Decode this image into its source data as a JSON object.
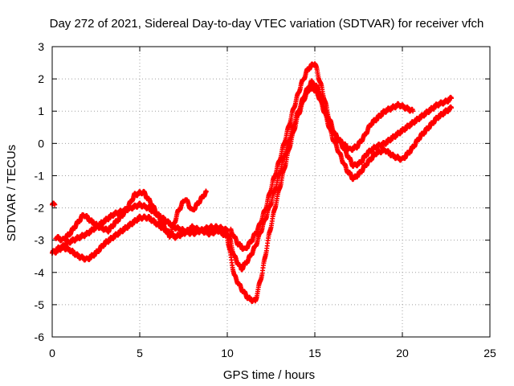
{
  "chart_data": {
    "type": "scatter",
    "title": "Day 272 of 2021, Sidereal Day-to-day VTEC variation (SDTVAR) for receiver vfch",
    "xlabel": "GPS time / hours",
    "ylabel": "SDTVAR / TECUs",
    "xlim": [
      0,
      25
    ],
    "ylim": [
      -6,
      3
    ],
    "xticks": [
      0,
      5,
      10,
      15,
      20,
      25
    ],
    "yticks": [
      -6,
      -5,
      -4,
      -3,
      -2,
      -1,
      0,
      1,
      2,
      3
    ],
    "grid": true,
    "legend": "none",
    "marker": "+",
    "color": "#ff0000",
    "series": [
      {
        "x": [
          0.0,
          0.4,
          0.8,
          1.2,
          1.6,
          2.0,
          2.5,
          3.0,
          3.5,
          4.0,
          4.5,
          5.0,
          5.5,
          6.0,
          6.5,
          7.0,
          7.5,
          8.0,
          8.5,
          9.0,
          9.5,
          10.0,
          10.4,
          10.8,
          11.2,
          11.6,
          12.0,
          12.4,
          12.8,
          13.2,
          13.6,
          14.0,
          14.4,
          14.8,
          15.2,
          15.6,
          16.0,
          16.4,
          16.8,
          17.2,
          17.6,
          18.0,
          18.5,
          19.0,
          19.5,
          20.0,
          20.5,
          21.0,
          21.5,
          22.0,
          22.5,
          22.8
        ],
        "y": [
          -3.4,
          -3.3,
          -3.1,
          -3.0,
          -2.9,
          -2.8,
          -2.6,
          -2.4,
          -2.2,
          -2.1,
          -2.0,
          -1.9,
          -2.0,
          -2.2,
          -2.4,
          -2.6,
          -2.7,
          -2.8,
          -2.7,
          -2.6,
          -2.6,
          -2.7,
          -3.5,
          -3.9,
          -3.6,
          -3.2,
          -2.6,
          -2.0,
          -1.3,
          -0.5,
          0.2,
          0.9,
          1.5,
          1.9,
          1.7,
          1.0,
          0.4,
          0.1,
          -0.3,
          -0.7,
          -0.6,
          -0.3,
          -0.1,
          0.0,
          0.2,
          0.4,
          0.6,
          0.8,
          1.0,
          1.2,
          1.3,
          1.4
        ]
      },
      {
        "x": [
          0.0,
          0.5,
          1.0,
          1.5,
          2.0,
          2.5,
          3.0,
          3.5,
          4.0,
          4.5,
          5.0,
          5.5,
          6.0,
          6.5,
          7.0,
          7.5,
          8.0,
          8.5,
          9.0,
          9.5,
          10.0,
          10.4,
          10.8,
          11.2,
          11.6,
          12.0,
          12.4,
          12.8,
          13.2,
          13.6,
          14.0,
          14.4,
          14.8,
          15.2,
          15.6,
          16.0,
          16.4,
          16.8,
          17.2,
          17.6,
          18.0,
          18.5,
          19.0,
          19.5,
          20.0,
          20.5,
          21.0,
          21.5,
          22.0,
          22.5,
          22.8
        ],
        "y": [
          -3.4,
          -3.2,
          -3.3,
          -3.5,
          -3.6,
          -3.4,
          -3.1,
          -2.9,
          -2.7,
          -2.5,
          -2.3,
          -2.3,
          -2.5,
          -2.7,
          -2.9,
          -2.8,
          -2.6,
          -2.7,
          -2.8,
          -2.7,
          -2.9,
          -4.1,
          -4.5,
          -4.8,
          -4.9,
          -4.0,
          -2.8,
          -1.8,
          -0.9,
          0.0,
          0.8,
          1.4,
          1.8,
          1.5,
          0.9,
          0.2,
          -0.3,
          -0.8,
          -1.1,
          -0.9,
          -0.6,
          -0.3,
          -0.2,
          -0.4,
          -0.5,
          -0.2,
          0.2,
          0.5,
          0.8,
          1.0,
          1.1
        ]
      },
      {
        "x": [
          0.2,
          0.6,
          1.0,
          1.4,
          1.8,
          2.2,
          2.7,
          3.2,
          3.7,
          4.2,
          4.7,
          5.2,
          5.7,
          6.2,
          6.7,
          7.2,
          7.6,
          8.0,
          8.4,
          8.8
        ],
        "y": [
          -2.9,
          -3.0,
          -2.8,
          -2.5,
          -2.2,
          -2.4,
          -2.6,
          -2.7,
          -2.4,
          -2.1,
          -1.6,
          -1.5,
          -1.9,
          -2.4,
          -2.9,
          -2.1,
          -1.7,
          -2.1,
          -1.8,
          -1.5
        ]
      },
      {
        "x": [
          10.2,
          10.6,
          11.0,
          11.4,
          11.8,
          12.2,
          12.6,
          13.0,
          13.4,
          13.8,
          14.2,
          14.6,
          15.0,
          15.4,
          15.8,
          16.2,
          16.6,
          17.0,
          17.4,
          17.8,
          18.2,
          18.6,
          19.0,
          19.4,
          19.8,
          20.2,
          20.6
        ],
        "y": [
          -2.7,
          -3.1,
          -3.3,
          -3.0,
          -2.6,
          -2.0,
          -1.2,
          -0.5,
          0.3,
          1.1,
          1.8,
          2.3,
          2.5,
          1.7,
          0.8,
          0.2,
          0.0,
          -0.2,
          -0.1,
          0.2,
          0.6,
          0.8,
          1.0,
          1.1,
          1.2,
          1.1,
          1.0
        ]
      },
      {
        "x": [
          0.0,
          0.15
        ],
        "y": [
          -1.9,
          -1.9
        ]
      }
    ]
  }
}
